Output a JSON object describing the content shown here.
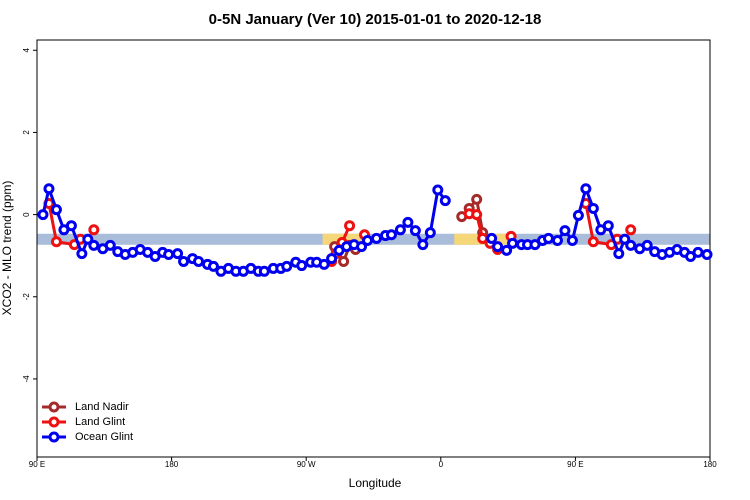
{
  "chart_data": {
    "type": "line",
    "title": "0-5N January (Ver 10)   2015-01-01 to 2020-12-18",
    "x_label": "Longitude",
    "y_label": "XCO2 - MLO trend (ppm)",
    "xlim": [
      90,
      540
    ],
    "ylim": [
      -5.9,
      4.25
    ],
    "xticks": [
      {
        "value": 90,
        "label": "90 E"
      },
      180,
      {
        "value": 270,
        "label": "90 W"
      },
      {
        "value": 360,
        "label": "0"
      },
      {
        "value": 450,
        "label": "90 E"
      },
      {
        "value": 540,
        "label": "180"
      }
    ],
    "yticks": [
      -4,
      -2,
      0,
      2,
      4
    ],
    "legend_position": "bottom-left",
    "band": {
      "value": -0.6,
      "color": "#a9bcd9",
      "highlight_color": "#f5d77a",
      "highlights": [
        [
          281,
          311
        ],
        [
          369,
          409
        ]
      ]
    },
    "series": [
      {
        "name": "Land Nadir",
        "color": "#a52a2a",
        "x": [
          289,
          291,
          295,
          299,
          303,
          340,
          374,
          379,
          384,
          388,
          393
        ],
        "values": [
          -0.78,
          -0.92,
          -1.14,
          -0.75,
          -0.85,
          null,
          -0.05,
          0.15,
          0.37,
          -0.44,
          -0.66
        ]
      },
      {
        "name": "Land Glint",
        "color": "#ee1111",
        "x": [
          98,
          103,
          115,
          119,
          124,
          128,
          200,
          287,
          290,
          294,
          299,
          304,
          309,
          340,
          379,
          384,
          388,
          393,
          398,
          402,
          407,
          430,
          457,
          462,
          474,
          478,
          483,
          487
        ],
        "values": [
          0.27,
          -0.66,
          -0.73,
          -0.6,
          null,
          -0.37,
          null,
          -1.14,
          -0.95,
          -0.68,
          -0.27,
          null,
          -0.49,
          null,
          0.02,
          0.0,
          -0.58,
          -0.7,
          -0.85,
          null,
          -0.53,
          null,
          0.27,
          -0.66,
          -0.73,
          -0.6,
          null,
          -0.37
        ]
      },
      {
        "name": "Ocean Glint",
        "color": "#0000ee",
        "x": [
          94,
          98,
          103,
          108,
          113,
          120,
          124,
          128,
          134,
          139,
          144,
          149,
          154,
          159,
          164,
          169,
          174,
          178,
          184,
          188,
          194,
          198,
          204,
          208,
          213,
          218,
          223,
          228,
          233,
          238,
          242,
          248,
          253,
          257,
          263,
          267,
          273,
          277,
          282,
          287,
          292,
          297,
          302,
          307,
          311,
          317,
          323,
          327,
          333,
          338,
          343,
          348,
          353,
          358,
          363,
          378,
          394,
          398,
          404,
          408,
          414,
          418,
          423,
          428,
          432,
          438,
          443,
          448,
          452,
          457,
          462,
          467,
          472,
          479,
          483,
          487,
          493,
          498,
          503,
          508,
          513,
          518,
          523,
          527,
          532,
          538
        ],
        "values": [
          0.0,
          0.63,
          0.12,
          -0.37,
          -0.27,
          -0.95,
          -0.6,
          -0.75,
          -0.83,
          -0.75,
          -0.9,
          -0.97,
          -0.92,
          -0.85,
          -0.92,
          -1.02,
          -0.92,
          -0.97,
          -0.95,
          -1.14,
          -1.07,
          -1.14,
          -1.21,
          -1.26,
          -1.38,
          -1.31,
          -1.38,
          -1.38,
          -1.31,
          -1.38,
          -1.38,
          -1.31,
          -1.31,
          -1.26,
          -1.16,
          -1.24,
          -1.16,
          -1.16,
          -1.21,
          -1.07,
          -0.87,
          -0.78,
          -0.73,
          -0.78,
          -0.63,
          -0.58,
          -0.51,
          -0.49,
          -0.37,
          -0.19,
          -0.39,
          -0.73,
          -0.44,
          0.6,
          0.34,
          null,
          -0.58,
          -0.78,
          -0.87,
          -0.7,
          -0.73,
          -0.73,
          -0.73,
          -0.63,
          -0.58,
          -0.63,
          -0.39,
          -0.63,
          -0.02,
          0.63,
          0.15,
          -0.37,
          -0.27,
          -0.95,
          -0.6,
          -0.75,
          -0.83,
          -0.75,
          -0.9,
          -0.97,
          -0.92,
          -0.85,
          -0.92,
          -1.02,
          -0.92,
          -0.97
        ]
      }
    ]
  }
}
